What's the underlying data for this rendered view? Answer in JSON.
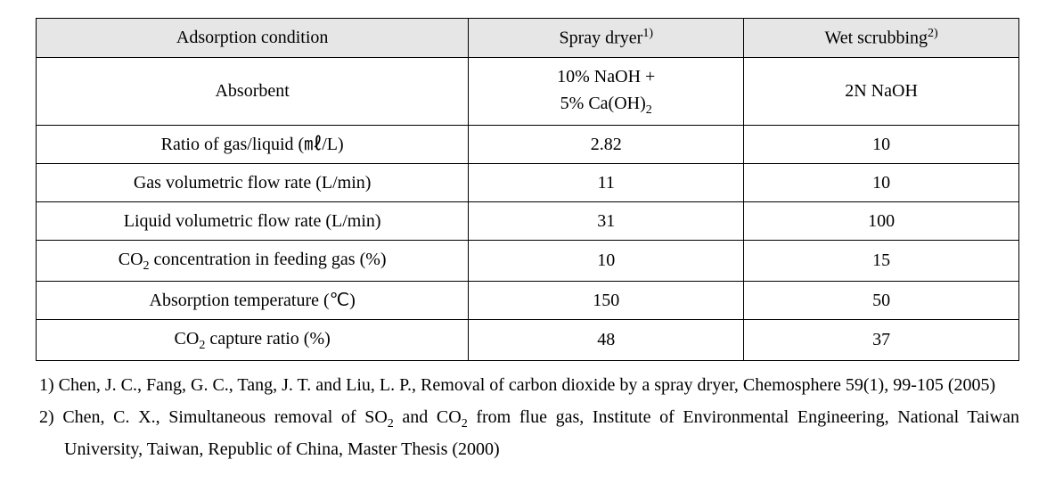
{
  "table": {
    "header_bg": "#e6e6e6",
    "border_color": "#000000",
    "columns": [
      {
        "label": "Adsorption condition",
        "width_pct": 44
      },
      {
        "label_html": "Spray dryer<sup>1)</sup>",
        "width_pct": 28
      },
      {
        "label_html": "Wet scrubbing<sup>2)</sup>",
        "width_pct": 28
      }
    ],
    "rows": [
      {
        "param": "Absorbent",
        "spray_html": "10% NaOH +<br>5% Ca(OH)<sub>2</sub>",
        "wet": "2N NaOH"
      },
      {
        "param": "Ratio of gas/liquid (㎖/L)",
        "spray": "2.82",
        "wet": "10"
      },
      {
        "param": "Gas volumetric flow rate (L/min)",
        "spray": "11",
        "wet": "10"
      },
      {
        "param": "Liquid volumetric flow rate (L/min)",
        "spray": "31",
        "wet": "100"
      },
      {
        "param_html": "CO<sub>2</sub> concentration in feeding gas (%)",
        "spray": "10",
        "wet": "15"
      },
      {
        "param": "Absorption temperature (℃)",
        "spray": "150",
        "wet": "50"
      },
      {
        "param_html": "CO<sub>2</sub> capture ratio (%)",
        "spray": "48",
        "wet": "37"
      }
    ]
  },
  "footnotes": [
    {
      "marker": "1)",
      "text": "Chen, J. C., Fang, G. C., Tang, J. T. and Liu, L. P., Removal of carbon dioxide by a spray dryer, Chemosphere 59(1), 99-105 (2005)"
    },
    {
      "marker": "2)",
      "text_html": "Chen, C. X., Simultaneous removal of SO<sub>2</sub> and CO<sub>2</sub> from flue gas, Institute of Environmental Engineering, National Taiwan University, Taiwan, Republic of China, Master Thesis (2000)"
    }
  ],
  "style": {
    "font_family": "Georgia, Times New Roman, serif",
    "font_size_pt": 20,
    "text_color": "#000000",
    "background_color": "#ffffff"
  }
}
